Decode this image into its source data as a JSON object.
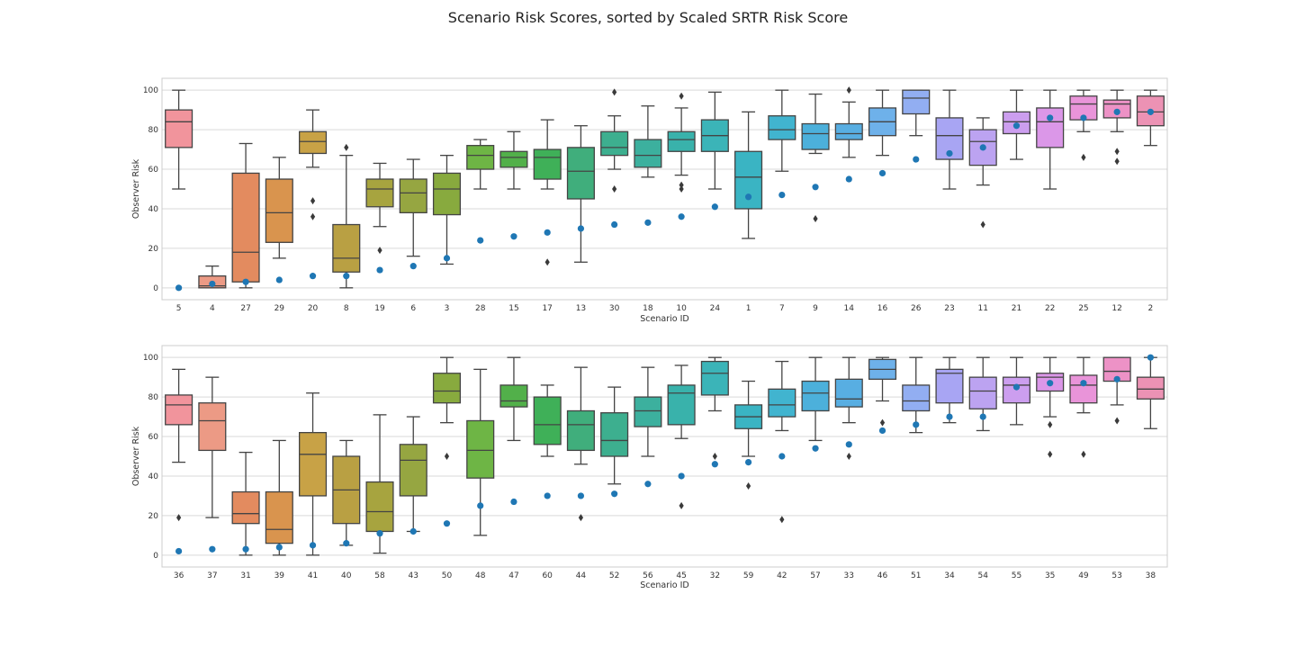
{
  "chart_data": {
    "title": "Scenario Risk Scores, sorted by Scaled SRTR Risk Score",
    "type": "box",
    "colors": {
      "whisker": "#444444",
      "mean_marker": "#1f77b4",
      "grid": "#d9d9d9",
      "frame": "#cccccc",
      "palette": [
        "#f1949c",
        "#ec9a85",
        "#e38b5f",
        "#d9944e",
        "#c8a246",
        "#b9a043",
        "#a7a43f",
        "#96a641",
        "#88aa3e",
        "#6eb545",
        "#52b04a",
        "#3fb058",
        "#40ae7c",
        "#3daf8f",
        "#3cb09e",
        "#39b2ab",
        "#3bb4b8",
        "#3ab4c3",
        "#41b4cf",
        "#4cb0db",
        "#58aee2",
        "#6eb1ea",
        "#92aef2",
        "#a8a5f3",
        "#bca3f1",
        "#cc9eef",
        "#db97e8",
        "#e994d9",
        "#ed92c6",
        "#ec92b4"
      ]
    },
    "panels": [
      {
        "xlabel": "Scenario ID",
        "ylabel": "Observer Risk",
        "ylim": [
          -6,
          106
        ],
        "yticks": [
          0,
          20,
          40,
          60,
          80,
          100
        ],
        "grid": true,
        "categories": [
          "5",
          "4",
          "27",
          "29",
          "20",
          "8",
          "19",
          "6",
          "3",
          "28",
          "15",
          "17",
          "13",
          "30",
          "18",
          "10",
          "24",
          "1",
          "7",
          "9",
          "14",
          "16",
          "26",
          "23",
          "11",
          "21",
          "22",
          "25",
          "12",
          "2"
        ],
        "boxes": [
          {
            "min": 50,
            "q1": 71,
            "median": 84,
            "q3": 90,
            "max": 100,
            "outliers": [],
            "mean": 0
          },
          {
            "min": 0,
            "q1": 0,
            "median": 1,
            "q3": 6,
            "max": 11,
            "outliers": [],
            "mean": 2
          },
          {
            "min": 0,
            "q1": 3,
            "median": 18,
            "q3": 58,
            "max": 73,
            "outliers": [],
            "mean": 3
          },
          {
            "min": 15,
            "q1": 23,
            "median": 38,
            "q3": 55,
            "max": 66,
            "outliers": [],
            "mean": 4
          },
          {
            "min": 61,
            "q1": 68,
            "median": 74,
            "q3": 79,
            "max": 90,
            "outliers": [
              44,
              36
            ],
            "mean": 6
          },
          {
            "min": 0,
            "q1": 8,
            "median": 15,
            "q3": 32,
            "max": 67,
            "outliers": [
              71
            ],
            "mean": 6
          },
          {
            "min": 31,
            "q1": 41,
            "median": 50,
            "q3": 55,
            "max": 63,
            "outliers": [
              19
            ],
            "mean": 9
          },
          {
            "min": 16,
            "q1": 38,
            "median": 48,
            "q3": 55,
            "max": 65,
            "outliers": [],
            "mean": 11
          },
          {
            "min": 12,
            "q1": 37,
            "median": 50,
            "q3": 58,
            "max": 67,
            "outliers": [],
            "mean": 15
          },
          {
            "min": 50,
            "q1": 60,
            "median": 67,
            "q3": 72,
            "max": 75,
            "outliers": [],
            "mean": 24
          },
          {
            "min": 50,
            "q1": 61,
            "median": 66,
            "q3": 69,
            "max": 79,
            "outliers": [],
            "mean": 26
          },
          {
            "min": 50,
            "q1": 55,
            "median": 66,
            "q3": 70,
            "max": 85,
            "outliers": [
              13
            ],
            "mean": 28
          },
          {
            "min": 13,
            "q1": 45,
            "median": 59,
            "q3": 71,
            "max": 82,
            "outliers": [],
            "mean": 30
          },
          {
            "min": 60,
            "q1": 67,
            "median": 71,
            "q3": 79,
            "max": 87,
            "outliers": [
              99,
              50
            ],
            "mean": 32
          },
          {
            "min": 56,
            "q1": 61,
            "median": 67,
            "q3": 75,
            "max": 92,
            "outliers": [],
            "mean": 33
          },
          {
            "min": 57,
            "q1": 69,
            "median": 75,
            "q3": 79,
            "max": 91,
            "outliers": [
              97,
              52,
              50
            ],
            "mean": 36
          },
          {
            "min": 50,
            "q1": 69,
            "median": 77,
            "q3": 85,
            "max": 99,
            "outliers": [],
            "mean": 41
          },
          {
            "min": 25,
            "q1": 40,
            "median": 56,
            "q3": 69,
            "max": 89,
            "outliers": [],
            "mean": 46
          },
          {
            "min": 59,
            "q1": 75,
            "median": 80,
            "q3": 87,
            "max": 100,
            "outliers": [],
            "mean": 47
          },
          {
            "min": 68,
            "q1": 70,
            "median": 78,
            "q3": 83,
            "max": 98,
            "outliers": [
              35
            ],
            "mean": 51
          },
          {
            "min": 66,
            "q1": 75,
            "median": 78,
            "q3": 83,
            "max": 94,
            "outliers": [
              100
            ],
            "mean": 55
          },
          {
            "min": 67,
            "q1": 77,
            "median": 84,
            "q3": 91,
            "max": 100,
            "outliers": [],
            "mean": 58
          },
          {
            "min": 77,
            "q1": 88,
            "median": 96,
            "q3": 100,
            "max": 100,
            "outliers": [],
            "mean": 65
          },
          {
            "min": 50,
            "q1": 65,
            "median": 77,
            "q3": 86,
            "max": 100,
            "outliers": [],
            "mean": 68
          },
          {
            "min": 52,
            "q1": 62,
            "median": 74,
            "q3": 80,
            "max": 86,
            "outliers": [
              32
            ],
            "mean": 71
          },
          {
            "min": 65,
            "q1": 78,
            "median": 84,
            "q3": 89,
            "max": 100,
            "outliers": [],
            "mean": 82
          },
          {
            "min": 50,
            "q1": 71,
            "median": 84,
            "q3": 91,
            "max": 100,
            "outliers": [],
            "mean": 86
          },
          {
            "min": 79,
            "q1": 85,
            "median": 93,
            "q3": 97,
            "max": 100,
            "outliers": [
              66
            ],
            "mean": 86
          },
          {
            "min": 79,
            "q1": 86,
            "median": 93,
            "q3": 95,
            "max": 100,
            "outliers": [
              69,
              64
            ],
            "mean": 89
          },
          {
            "min": 72,
            "q1": 82,
            "median": 89,
            "q3": 97,
            "max": 100,
            "outliers": [],
            "mean": 89
          }
        ]
      },
      {
        "xlabel": "Scenario ID",
        "ylabel": "Observer Risk",
        "ylim": [
          -6,
          106
        ],
        "yticks": [
          0,
          20,
          40,
          60,
          80,
          100
        ],
        "grid": true,
        "categories": [
          "36",
          "37",
          "31",
          "39",
          "41",
          "40",
          "58",
          "43",
          "50",
          "48",
          "47",
          "60",
          "44",
          "52",
          "56",
          "45",
          "32",
          "59",
          "42",
          "57",
          "33",
          "46",
          "51",
          "34",
          "54",
          "55",
          "35",
          "49",
          "53",
          "38"
        ],
        "boxes": [
          {
            "min": 47,
            "q1": 66,
            "median": 76,
            "q3": 81,
            "max": 94,
            "outliers": [
              19
            ],
            "mean": 2
          },
          {
            "min": 19,
            "q1": 53,
            "median": 68,
            "q3": 77,
            "max": 90,
            "outliers": [],
            "mean": 3
          },
          {
            "min": 0,
            "q1": 16,
            "median": 21,
            "q3": 32,
            "max": 52,
            "outliers": [],
            "mean": 3
          },
          {
            "min": 0,
            "q1": 6,
            "median": 13,
            "q3": 32,
            "max": 58,
            "outliers": [],
            "mean": 4
          },
          {
            "min": 0,
            "q1": 30,
            "median": 51,
            "q3": 62,
            "max": 82,
            "outliers": [],
            "mean": 5
          },
          {
            "min": 5,
            "q1": 16,
            "median": 33,
            "q3": 50,
            "max": 58,
            "outliers": [],
            "mean": 6
          },
          {
            "min": 1,
            "q1": 12,
            "median": 22,
            "q3": 37,
            "max": 71,
            "outliers": [],
            "mean": 11
          },
          {
            "min": 12,
            "q1": 30,
            "median": 48,
            "q3": 56,
            "max": 70,
            "outliers": [],
            "mean": 12
          },
          {
            "min": 67,
            "q1": 77,
            "median": 83,
            "q3": 92,
            "max": 100,
            "outliers": [
              50
            ],
            "mean": 16
          },
          {
            "min": 10,
            "q1": 39,
            "median": 53,
            "q3": 68,
            "max": 94,
            "outliers": [],
            "mean": 25
          },
          {
            "min": 58,
            "q1": 75,
            "median": 78,
            "q3": 86,
            "max": 100,
            "outliers": [],
            "mean": 27
          },
          {
            "min": 50,
            "q1": 56,
            "median": 66,
            "q3": 80,
            "max": 86,
            "outliers": [],
            "mean": 30
          },
          {
            "min": 46,
            "q1": 53,
            "median": 66,
            "q3": 73,
            "max": 95,
            "outliers": [
              19
            ],
            "mean": 30
          },
          {
            "min": 36,
            "q1": 50,
            "median": 58,
            "q3": 72,
            "max": 85,
            "outliers": [],
            "mean": 31
          },
          {
            "min": 50,
            "q1": 65,
            "median": 73,
            "q3": 80,
            "max": 95,
            "outliers": [],
            "mean": 36
          },
          {
            "min": 59,
            "q1": 66,
            "median": 82,
            "q3": 86,
            "max": 96,
            "outliers": [
              25
            ],
            "mean": 40
          },
          {
            "min": 73,
            "q1": 81,
            "median": 92,
            "q3": 98,
            "max": 100,
            "outliers": [
              50
            ],
            "mean": 46
          },
          {
            "min": 50,
            "q1": 64,
            "median": 70,
            "q3": 76,
            "max": 88,
            "outliers": [
              35
            ],
            "mean": 47
          },
          {
            "min": 63,
            "q1": 70,
            "median": 76,
            "q3": 84,
            "max": 98,
            "outliers": [
              18
            ],
            "mean": 50
          },
          {
            "min": 58,
            "q1": 73,
            "median": 82,
            "q3": 88,
            "max": 100,
            "outliers": [],
            "mean": 54
          },
          {
            "min": 67,
            "q1": 75,
            "median": 79,
            "q3": 89,
            "max": 100,
            "outliers": [
              50
            ],
            "mean": 56
          },
          {
            "min": 78,
            "q1": 89,
            "median": 94,
            "q3": 99,
            "max": 100,
            "outliers": [
              67
            ],
            "mean": 63
          },
          {
            "min": 62,
            "q1": 73,
            "median": 78,
            "q3": 86,
            "max": 100,
            "outliers": [],
            "mean": 66
          },
          {
            "min": 67,
            "q1": 77,
            "median": 92,
            "q3": 94,
            "max": 100,
            "outliers": [],
            "mean": 70
          },
          {
            "min": 63,
            "q1": 74,
            "median": 83,
            "q3": 90,
            "max": 100,
            "outliers": [],
            "mean": 70
          },
          {
            "min": 66,
            "q1": 77,
            "median": 86,
            "q3": 90,
            "max": 100,
            "outliers": [],
            "mean": 85
          },
          {
            "min": 70,
            "q1": 83,
            "median": 90,
            "q3": 92,
            "max": 100,
            "outliers": [
              66,
              51
            ],
            "mean": 87
          },
          {
            "min": 72,
            "q1": 77,
            "median": 86,
            "q3": 91,
            "max": 100,
            "outliers": [
              51
            ],
            "mean": 87
          },
          {
            "min": 76,
            "q1": 88,
            "median": 93,
            "q3": 100,
            "max": 100,
            "outliers": [
              68
            ],
            "mean": 89
          },
          {
            "min": 64,
            "q1": 79,
            "median": 84,
            "q3": 90,
            "max": 100,
            "outliers": [],
            "mean": 100
          }
        ]
      }
    ]
  }
}
